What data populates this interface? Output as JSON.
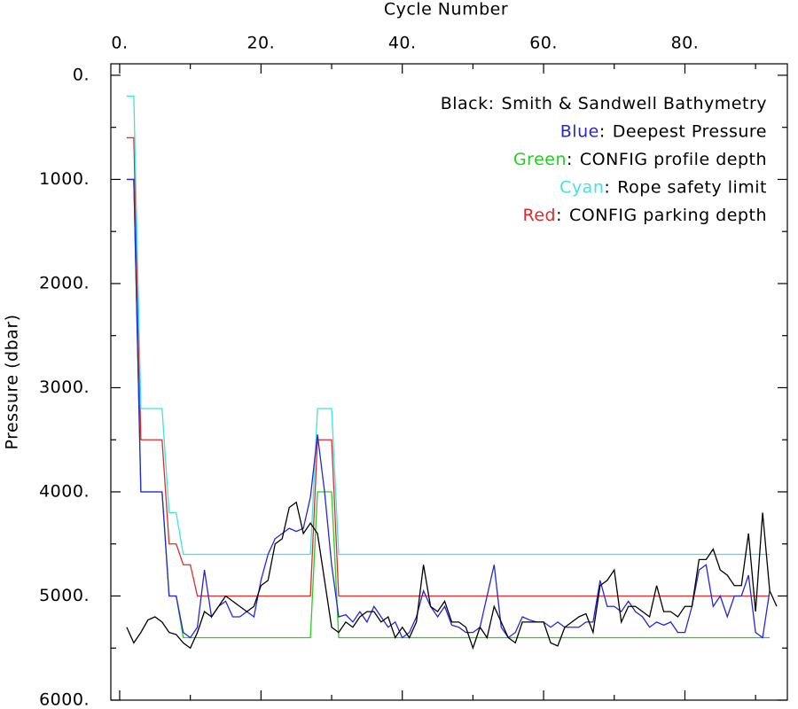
{
  "chart_data": {
    "type": "line",
    "x_label": "Cycle Number",
    "y_label": "Pressure (dbar)",
    "x_axis_position": "top",
    "y_inverted": true,
    "xlim": [
      -1.25,
      94.5
    ],
    "ylim": [
      -110,
      6000
    ],
    "xticks": [
      {
        "value": 0,
        "label": "0."
      },
      {
        "value": 20,
        "label": "20."
      },
      {
        "value": 40,
        "label": "40."
      },
      {
        "value": 60,
        "label": "60."
      },
      {
        "value": 80,
        "label": "80."
      }
    ],
    "x_minor_ticks": [
      10,
      30,
      50,
      70,
      90
    ],
    "yticks": [
      {
        "value": 0,
        "label": "0."
      },
      {
        "value": 1000,
        "label": "1000."
      },
      {
        "value": 2000,
        "label": "2000."
      },
      {
        "value": 3000,
        "label": "3000."
      },
      {
        "value": 4000,
        "label": "4000."
      },
      {
        "value": 5000,
        "label": "5000."
      },
      {
        "value": 6000,
        "label": "6000."
      }
    ],
    "y_minor_ticks": [
      500,
      1500,
      2500,
      3500,
      4500,
      5500
    ],
    "legend_position": "upper right",
    "legend_separator": ":",
    "x": [
      1,
      2,
      3,
      4,
      5,
      6,
      7,
      8,
      9,
      10,
      11,
      12,
      13,
      14,
      15,
      16,
      17,
      18,
      19,
      20,
      21,
      22,
      23,
      24,
      25,
      26,
      27,
      28,
      29,
      30,
      31,
      32,
      33,
      34,
      35,
      36,
      37,
      38,
      39,
      40,
      41,
      42,
      43,
      44,
      45,
      46,
      47,
      48,
      49,
      50,
      51,
      52,
      53,
      54,
      55,
      56,
      57,
      58,
      59,
      60,
      61,
      62,
      63,
      64,
      65,
      66,
      67,
      68,
      69,
      70,
      71,
      72,
      73,
      74,
      75,
      76,
      77,
      78,
      79,
      80,
      81,
      82,
      83,
      84,
      85,
      86,
      87,
      88,
      89,
      90,
      91,
      92,
      93
    ],
    "series": [
      {
        "name": "Smith & Sandwell Bathymetry",
        "legend_word": "Black",
        "color": "#000000",
        "values": [
          5300,
          5450,
          5350,
          5230,
          5200,
          5250,
          5350,
          5370,
          5450,
          5500,
          5350,
          5150,
          5200,
          5100,
          5000,
          5050,
          5100,
          5150,
          5100,
          4900,
          4850,
          4500,
          4450,
          4150,
          4100,
          4400,
          4300,
          4400,
          4850,
          5300,
          5350,
          5250,
          5300,
          5200,
          5150,
          5150,
          5250,
          5200,
          5400,
          5300,
          5400,
          5250,
          4700,
          5100,
          5150,
          5050,
          5250,
          5250,
          5300,
          5500,
          5300,
          5400,
          5100,
          5250,
          5400,
          5450,
          5250,
          5250,
          5250,
          5250,
          5450,
          5480,
          5300,
          5250,
          5200,
          5170,
          5350,
          4900,
          4850,
          4750,
          5250,
          5100,
          5100,
          5150,
          5200,
          4900,
          5150,
          5150,
          5200,
          5100,
          5100,
          4650,
          4650,
          4550,
          4750,
          4800,
          4900,
          4900,
          4400,
          5150,
          4200,
          4950,
          5100
        ]
      },
      {
        "name": "Deepest Pressure",
        "legend_word": "Blue",
        "color": "#2626d9",
        "values": [
          1000,
          1000,
          4000,
          4000,
          4000,
          4000,
          5000,
          5000,
          5350,
          5400,
          5300,
          4750,
          5200,
          5100,
          5050,
          5200,
          5200,
          5150,
          5200,
          4850,
          4600,
          4450,
          4400,
          4350,
          4380,
          4350,
          4050,
          3450,
          4000,
          4700,
          5200,
          5180,
          5250,
          5150,
          5250,
          5100,
          5200,
          5300,
          5250,
          5400,
          5350,
          5200,
          4950,
          5100,
          5200,
          5100,
          5280,
          5300,
          5350,
          5350,
          5300,
          5000,
          4700,
          5300,
          5400,
          5350,
          5200,
          5230,
          5250,
          5250,
          5300,
          5250,
          5300,
          5300,
          5300,
          5250,
          5250,
          4850,
          5100,
          5100,
          5150,
          5050,
          5150,
          5200,
          5300,
          5250,
          5280,
          5250,
          5350,
          5350,
          5100,
          4750,
          4700,
          5100,
          5000,
          5200,
          5000,
          5000,
          4800,
          5350,
          5400,
          4950,
          null
        ]
      },
      {
        "name": "CONFIG profile depth",
        "legend_word": "Green",
        "color": "#22d022",
        "values": [
          1000,
          1000,
          4000,
          4000,
          4000,
          4000,
          5000,
          5000,
          5400,
          5400,
          5400,
          5400,
          5400,
          5400,
          5400,
          5400,
          5400,
          5400,
          5400,
          5400,
          5400,
          5400,
          5400,
          5400,
          5400,
          5400,
          5400,
          4000,
          4000,
          4000,
          5400,
          5400,
          5400,
          5400,
          5400,
          5400,
          5400,
          5400,
          5400,
          5400,
          5400,
          5400,
          5400,
          5400,
          5400,
          5400,
          5400,
          5400,
          5400,
          5400,
          5400,
          5400,
          5400,
          5400,
          5400,
          5400,
          5400,
          5400,
          5400,
          5400,
          5400,
          5400,
          5400,
          5400,
          5400,
          5400,
          5400,
          5400,
          5400,
          5400,
          5400,
          5400,
          5400,
          5400,
          5400,
          5400,
          5400,
          5400,
          5400,
          5400,
          5400,
          5400,
          5400,
          5400,
          5400,
          5400,
          5400,
          5400,
          5400,
          5400,
          5400,
          5400,
          null
        ]
      },
      {
        "name": "Rope safety limit",
        "legend_word": "Cyan",
        "color": "#3fe3e3",
        "values": [
          200,
          200,
          3200,
          3200,
          3200,
          3200,
          4200,
          4200,
          4600,
          4600,
          4600,
          4600,
          4600,
          4600,
          4600,
          4600,
          4600,
          4600,
          4600,
          4600,
          4600,
          4600,
          4600,
          4600,
          4600,
          4600,
          4600,
          3200,
          3200,
          3200,
          4600,
          4600,
          4600,
          4600,
          4600,
          4600,
          4600,
          4600,
          4600,
          4600,
          4600,
          4600,
          4600,
          4600,
          4600,
          4600,
          4600,
          4600,
          4600,
          4600,
          4600,
          4600,
          4600,
          4600,
          4600,
          4600,
          4600,
          4600,
          4600,
          4600,
          4600,
          4600,
          4600,
          4600,
          4600,
          4600,
          4600,
          4600,
          4600,
          4600,
          4600,
          4600,
          4600,
          4600,
          4600,
          4600,
          4600,
          4600,
          4600,
          4600,
          4600,
          4600,
          4600,
          4600,
          4600,
          4600,
          4600,
          4600,
          4600,
          4600,
          4600,
          4600,
          null
        ]
      },
      {
        "name": "CONFIG parking depth",
        "legend_word": "Red",
        "color": "#e02a2a",
        "values": [
          600,
          600,
          3500,
          3500,
          3500,
          3500,
          4500,
          4500,
          4700,
          4700,
          5000,
          5000,
          5000,
          5000,
          5000,
          5000,
          5000,
          5000,
          5000,
          5000,
          5000,
          5000,
          5000,
          5000,
          5000,
          5000,
          5000,
          3500,
          3500,
          3500,
          5000,
          5000,
          5000,
          5000,
          5000,
          5000,
          5000,
          5000,
          5000,
          5000,
          5000,
          5000,
          5000,
          5000,
          5000,
          5000,
          5000,
          5000,
          5000,
          5000,
          5000,
          5000,
          5000,
          5000,
          5000,
          5000,
          5000,
          5000,
          5000,
          5000,
          5000,
          5000,
          5000,
          5000,
          5000,
          5000,
          5000,
          5000,
          5000,
          5000,
          5000,
          5000,
          5000,
          5000,
          5000,
          5000,
          5000,
          5000,
          5000,
          5000,
          5000,
          5000,
          5000,
          5000,
          5000,
          5000,
          5000,
          5000,
          5000,
          5000,
          5000,
          5000,
          null
        ]
      }
    ]
  }
}
